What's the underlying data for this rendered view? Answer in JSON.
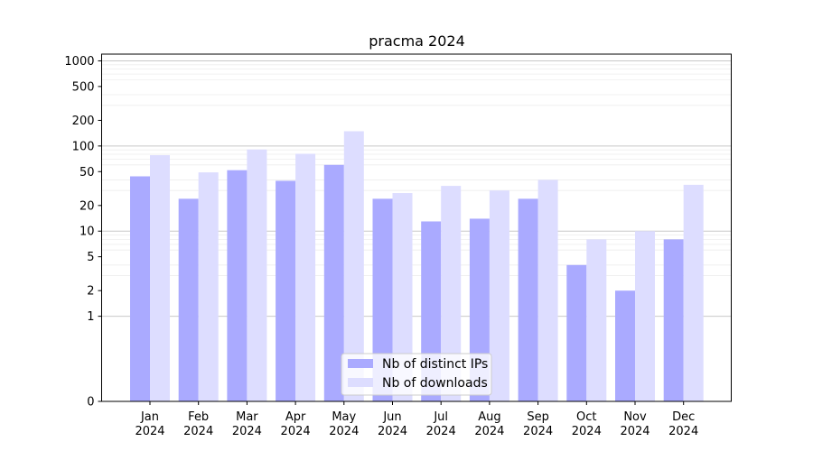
{
  "chart_data": {
    "type": "bar",
    "title": "pracma 2024",
    "xlabel": "",
    "ylabel": "",
    "yscale": "symlog",
    "ylim": [
      0,
      1200
    ],
    "grid": "y",
    "legend_position": "bottom-center",
    "categories": [
      [
        "Jan",
        "2024"
      ],
      [
        "Feb",
        "2024"
      ],
      [
        "Mar",
        "2024"
      ],
      [
        "Apr",
        "2024"
      ],
      [
        "May",
        "2024"
      ],
      [
        "Jun",
        "2024"
      ],
      [
        "Jul",
        "2024"
      ],
      [
        "Aug",
        "2024"
      ],
      [
        "Sep",
        "2024"
      ],
      [
        "Oct",
        "2024"
      ],
      [
        "Nov",
        "2024"
      ],
      [
        "Dec",
        "2024"
      ]
    ],
    "y_ticks": [
      0,
      1,
      2,
      5,
      10,
      20,
      50,
      100,
      200,
      500,
      1000
    ],
    "series": [
      {
        "name": "Nb of distinct IPs",
        "color": "#aaaaff",
        "values": [
          44,
          24,
          52,
          39,
          60,
          24,
          13,
          14,
          24,
          4,
          2,
          8
        ]
      },
      {
        "name": "Nb of downloads",
        "color": "#ddddff",
        "values": [
          78,
          49,
          91,
          81,
          149,
          28,
          34,
          30,
          40,
          8,
          10,
          35
        ]
      }
    ]
  }
}
